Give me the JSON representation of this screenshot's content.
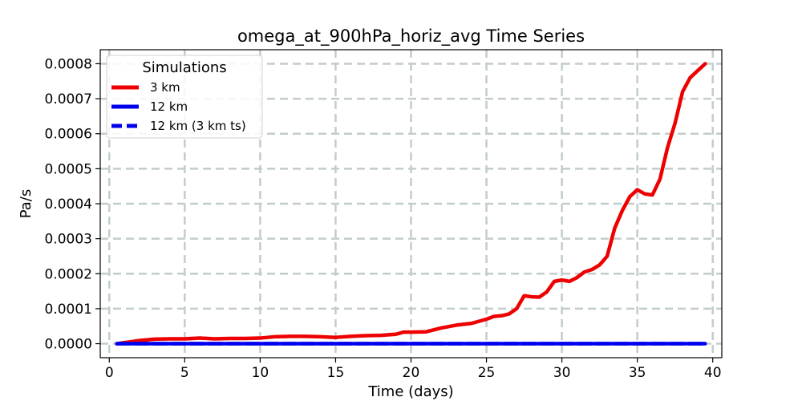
{
  "chart_data": {
    "type": "line",
    "title": "omega_at_900hPa_horiz_avg Time Series",
    "xlabel": "Time (days)",
    "ylabel": "Pa/s",
    "xlim": [
      -0.6,
      40.6
    ],
    "ylim": [
      -4e-05,
      0.00084
    ],
    "grid": true,
    "x_ticks": [
      0,
      5,
      10,
      15,
      20,
      25,
      30,
      35,
      40
    ],
    "x_tick_labels": [
      "0",
      "5",
      "10",
      "15",
      "20",
      "25",
      "30",
      "35",
      "40"
    ],
    "y_ticks": [
      0,
      0.0001,
      0.0002,
      0.0003,
      0.0004,
      0.0005,
      0.0006,
      0.0007,
      0.0008
    ],
    "y_tick_labels": [
      "0.0000",
      "0.0001",
      "0.0002",
      "0.0003",
      "0.0004",
      "0.0005",
      "0.0006",
      "0.0007",
      "0.0008"
    ],
    "legend": {
      "title": "Simulations",
      "location": "upper-left",
      "entries": [
        "3 km",
        "12 km",
        "12 km (3 km ts)"
      ]
    },
    "series": [
      {
        "name": "3 km",
        "color": "#ee0000",
        "style": "solid",
        "x": [
          0.5,
          1,
          2,
          3,
          4,
          5,
          6,
          7,
          8,
          9,
          10,
          11,
          12,
          13,
          14,
          15,
          16,
          17,
          18,
          19,
          19.5,
          20,
          21,
          22,
          23,
          24,
          25,
          25.5,
          26,
          26.5,
          27,
          27.5,
          28,
          28.5,
          29,
          29.5,
          30,
          30.5,
          31,
          31.5,
          32,
          32.5,
          33,
          33.5,
          34,
          34.5,
          35,
          35.5,
          36,
          36.5,
          37,
          37.5,
          38,
          38.5,
          39,
          39.5
        ],
        "y": [
          0.0,
          3e-06,
          9e-06,
          1.3e-05,
          1.4e-05,
          1.4e-05,
          1.6e-05,
          1.4e-05,
          1.5e-05,
          1.5e-05,
          1.6e-05,
          2e-05,
          2.1e-05,
          2.1e-05,
          2e-05,
          1.8e-05,
          2.1e-05,
          2.3e-05,
          2.4e-05,
          2.7e-05,
          3.3e-05,
          3.3e-05,
          3.4e-05,
          4.5e-05,
          5.3e-05,
          5.8e-05,
          7e-05,
          7.8e-05,
          8e-05,
          8.5e-05,
          0.0001,
          0.000137,
          0.000134,
          0.000133,
          0.000148,
          0.000178,
          0.000182,
          0.000178,
          0.000189,
          0.000205,
          0.000212,
          0.000225,
          0.00025,
          0.00033,
          0.00038,
          0.00042,
          0.00044,
          0.000428,
          0.000425,
          0.00047,
          0.00056,
          0.00063,
          0.00072,
          0.00076,
          0.00078,
          0.0008
        ]
      },
      {
        "name": "12 km",
        "color": "#0000ee",
        "style": "solid",
        "x": [
          0.5,
          39.5
        ],
        "y": [
          0.0,
          0.0
        ]
      },
      {
        "name": "12 km (3 km ts)",
        "color": "#0000ee",
        "style": "dashed",
        "x": [
          0.5,
          39.5
        ],
        "y": [
          0.0,
          0.0
        ]
      }
    ]
  }
}
